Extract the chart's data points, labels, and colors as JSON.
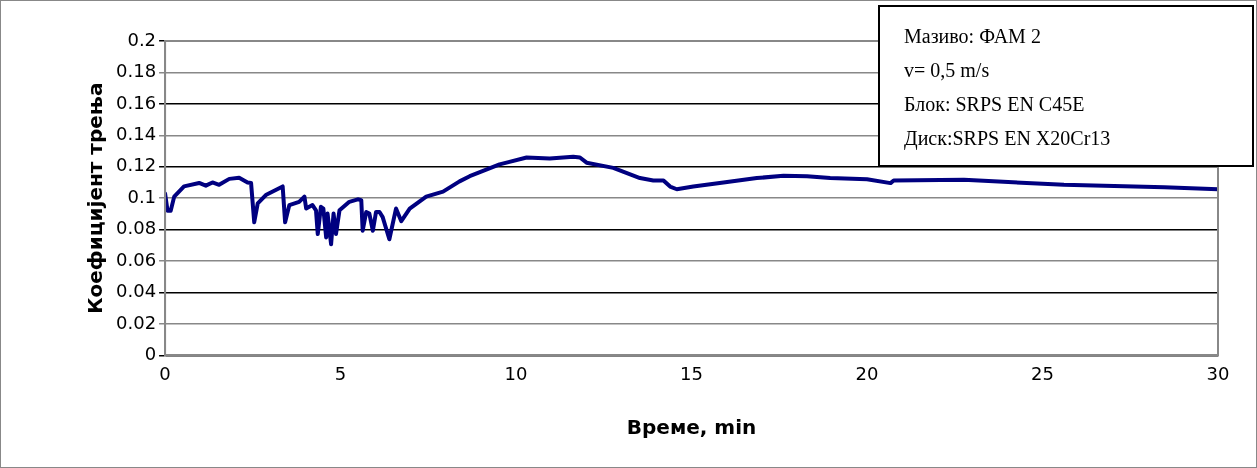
{
  "chart_data": {
    "type": "line",
    "xlabel": "Време, min",
    "ylabel": "Коефицијент трења",
    "annotations": [
      "Мазиво: ФАМ 2",
      "v= 0,5 m/s",
      "Блок: SRPS EN C45E",
      "Диск:SRPS EN X20Cr13"
    ],
    "xlim": [
      0,
      30
    ],
    "xticks": [
      0,
      5,
      10,
      15,
      20,
      25,
      30
    ],
    "ylim": [
      0,
      0.2
    ],
    "yticks": [
      0,
      0.02,
      0.04,
      0.06,
      0.08,
      0.1,
      0.12,
      0.14,
      0.16,
      0.18,
      0.2
    ],
    "grid": "y",
    "legend": false,
    "marker": "none",
    "line_style": "solid",
    "series": [
      {
        "color": "#000080",
        "x": [
          0,
          0.07,
          0.16,
          0.26,
          0.54,
          0.97,
          1.16,
          1.35,
          1.54,
          1.83,
          2.11,
          2.35,
          2.45,
          2.54,
          2.64,
          2.87,
          3.35,
          3.42,
          3.54,
          3.82,
          3.97,
          4.02,
          4.2,
          4.3,
          4.35,
          4.44,
          4.51,
          4.59,
          4.63,
          4.73,
          4.8,
          4.87,
          4.97,
          5.25,
          5.49,
          5.59,
          5.63,
          5.73,
          5.82,
          5.92,
          6.01,
          6.11,
          6.2,
          6.39,
          6.58,
          6.73,
          6.97,
          7.44,
          7.92,
          8.39,
          8.68,
          9.53,
          10.3,
          10.96,
          11.63,
          11.82,
          12.01,
          12.77,
          13.53,
          13.91,
          14.2,
          14.39,
          14.58,
          15.05,
          15.91,
          16.86,
          17.62,
          18.29,
          18.95,
          20,
          20.67,
          20.76,
          22.76,
          25.61,
          28.47,
          30
        ],
        "values": [
          0.103,
          0.092,
          0.092,
          0.101,
          0.1075,
          0.1097,
          0.108,
          0.11,
          0.1085,
          0.1123,
          0.113,
          0.11,
          0.1097,
          0.0847,
          0.0967,
          0.102,
          0.1075,
          0.0847,
          0.0956,
          0.0977,
          0.101,
          0.0934,
          0.0956,
          0.0923,
          0.0772,
          0.0945,
          0.0934,
          0.075,
          0.0902,
          0.0707,
          0.0902,
          0.0772,
          0.0923,
          0.0977,
          0.0993,
          0.0988,
          0.0793,
          0.0912,
          0.0902,
          0.0793,
          0.0912,
          0.0912,
          0.088,
          0.0739,
          0.0934,
          0.0854,
          0.0934,
          0.101,
          0.1042,
          0.1107,
          0.114,
          0.1215,
          0.1259,
          0.1252,
          0.1263,
          0.1259,
          0.1226,
          0.1193,
          0.1128,
          0.1113,
          0.1113,
          0.1074,
          0.1057,
          0.1074,
          0.11,
          0.1128,
          0.1143,
          0.1139,
          0.1128,
          0.112,
          0.1096,
          0.1113,
          0.1117,
          0.1085,
          0.107,
          0.1057
        ]
      }
    ]
  }
}
